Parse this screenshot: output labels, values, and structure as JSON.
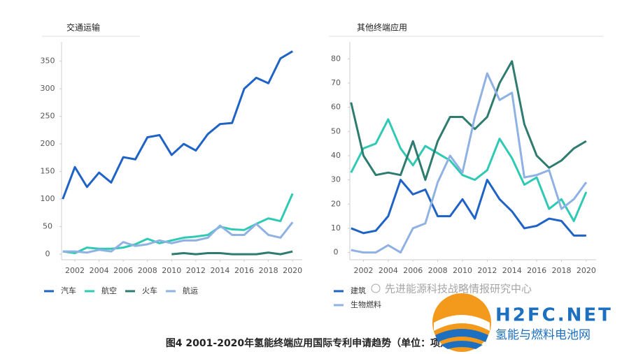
{
  "chart_data": [
    {
      "type": "line",
      "title": "交通运输",
      "x": [
        2001,
        2002,
        2003,
        2004,
        2005,
        2006,
        2007,
        2008,
        2009,
        2010,
        2011,
        2012,
        2013,
        2014,
        2015,
        2016,
        2017,
        2018,
        2019,
        2020
      ],
      "xlim": [
        2000.9,
        2020.8
      ],
      "xticks": [
        2002,
        2004,
        2006,
        2008,
        2010,
        2012,
        2014,
        2016,
        2018,
        2020
      ],
      "ylim": [
        -10,
        385
      ],
      "yticks": [
        0,
        50,
        100,
        150,
        200,
        250,
        300,
        350
      ],
      "grid": false,
      "series": [
        {
          "name": "汽车",
          "color": "#1f63c6",
          "values": [
            100,
            158,
            122,
            148,
            130,
            176,
            172,
            212,
            216,
            180,
            200,
            188,
            218,
            236,
            238,
            300,
            320,
            310,
            355,
            368
          ]
        },
        {
          "name": "航空",
          "color": "#2fc9b4",
          "values": [
            5,
            2,
            12,
            10,
            10,
            12,
            18,
            28,
            20,
            25,
            30,
            32,
            35,
            50,
            45,
            44,
            55,
            65,
            60,
            110
          ]
        },
        {
          "name": "火车",
          "color": "#2e7b6f",
          "values": [
            null,
            null,
            null,
            null,
            null,
            null,
            null,
            null,
            null,
            0,
            2,
            0,
            2,
            2,
            0,
            0,
            0,
            3,
            0,
            5
          ]
        },
        {
          "name": "航运",
          "color": "#8fb1e3",
          "values": [
            5,
            5,
            3,
            8,
            5,
            22,
            15,
            18,
            25,
            20,
            25,
            25,
            30,
            52,
            35,
            35,
            55,
            35,
            30,
            58
          ]
        }
      ]
    },
    {
      "type": "line",
      "title": "其他终端应用",
      "x": [
        2001,
        2002,
        2003,
        2004,
        2005,
        2006,
        2007,
        2008,
        2009,
        2010,
        2011,
        2012,
        2013,
        2014,
        2015,
        2016,
        2017,
        2018,
        2019,
        2020
      ],
      "xlim": [
        2000.9,
        2020.8
      ],
      "xticks": [
        2002,
        2004,
        2006,
        2008,
        2010,
        2012,
        2014,
        2016,
        2018,
        2020
      ],
      "ylim": [
        -3,
        87
      ],
      "yticks": [
        0,
        10,
        20,
        30,
        40,
        50,
        60,
        70,
        80
      ],
      "grid": false,
      "series": [
        {
          "name": "建筑",
          "color": "#1f63c6",
          "values": [
            10,
            8,
            9,
            15,
            30,
            24,
            26,
            15,
            15,
            22,
            14,
            30,
            22,
            17,
            10,
            11,
            14,
            13,
            7,
            7
          ]
        },
        {
          "color": "#2fc9b4",
          "values": [
            33,
            43,
            45,
            55,
            43,
            36,
            44,
            41,
            38,
            32,
            30,
            34,
            47,
            39,
            28,
            31,
            18,
            22,
            13,
            25
          ]
        },
        {
          "color": "#2e7b6f",
          "values": [
            62,
            40,
            32,
            33,
            32,
            46,
            30,
            46,
            56,
            56,
            51,
            56,
            70,
            79,
            53,
            40,
            35,
            38,
            43,
            46
          ]
        },
        {
          "name": "生物燃料",
          "color": "#8fb1e3",
          "values": [
            1,
            0,
            0,
            3,
            0,
            10,
            12,
            29,
            40,
            33,
            56,
            74,
            63,
            66,
            31,
            32,
            34,
            18,
            22,
            29
          ]
        }
      ]
    }
  ],
  "caption": "图4 2001-2020年氢能终端应用国际专利申请趋势（单位：项）",
  "watermarks": [
    "先进能源科技战略情报研究中心",
    "H2FC.NET",
    "氢能与燃料电池网"
  ]
}
